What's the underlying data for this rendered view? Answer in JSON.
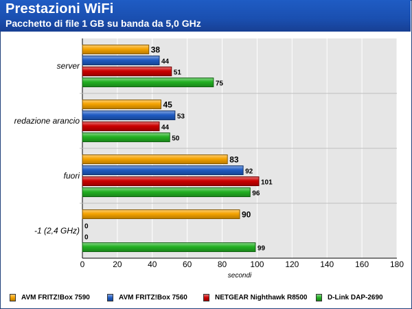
{
  "header": {
    "title": "Prestazioni WiFi",
    "subtitle": "Pacchetto di file 1 GB su banda da 5,0 GHz"
  },
  "chart_data": {
    "type": "bar",
    "orientation": "horizontal",
    "title": "Prestazioni WiFi",
    "subtitle": "Pacchetto di file 1 GB su banda da 5,0 GHz",
    "xlabel": "secondi",
    "ylabel": "",
    "xlim": [
      0,
      180
    ],
    "xticks": [
      "0",
      "20",
      "40",
      "60",
      "80",
      "100",
      "120",
      "140",
      "160",
      "180"
    ],
    "grid": true,
    "legend_position": "bottom",
    "categories": [
      "server",
      "redazione arancio",
      "fuori",
      "-1 (2,4 GHz)"
    ],
    "series": [
      {
        "name": "AVM FRITZ!Box 7590",
        "color": "#f5a300",
        "values": [
          38,
          45,
          83,
          90
        ],
        "labels": [
          "38",
          "45",
          "83",
          "90"
        ]
      },
      {
        "name": "AVM FRITZ!Box 7560",
        "color": "#1f5cc4",
        "values": [
          44,
          53,
          92,
          0
        ],
        "labels": [
          "44",
          "53",
          "92",
          "0"
        ]
      },
      {
        "name": "NETGEAR Nighthawk R8500",
        "color": "#cc0000",
        "values": [
          51,
          44,
          101,
          0
        ],
        "labels": [
          "51",
          "44",
          "101",
          "0"
        ]
      },
      {
        "name": "D-Link DAP-2690",
        "color": "#22b022",
        "values": [
          75,
          50,
          96,
          99
        ],
        "labels": [
          "75",
          "50",
          "96",
          "99"
        ]
      }
    ]
  }
}
